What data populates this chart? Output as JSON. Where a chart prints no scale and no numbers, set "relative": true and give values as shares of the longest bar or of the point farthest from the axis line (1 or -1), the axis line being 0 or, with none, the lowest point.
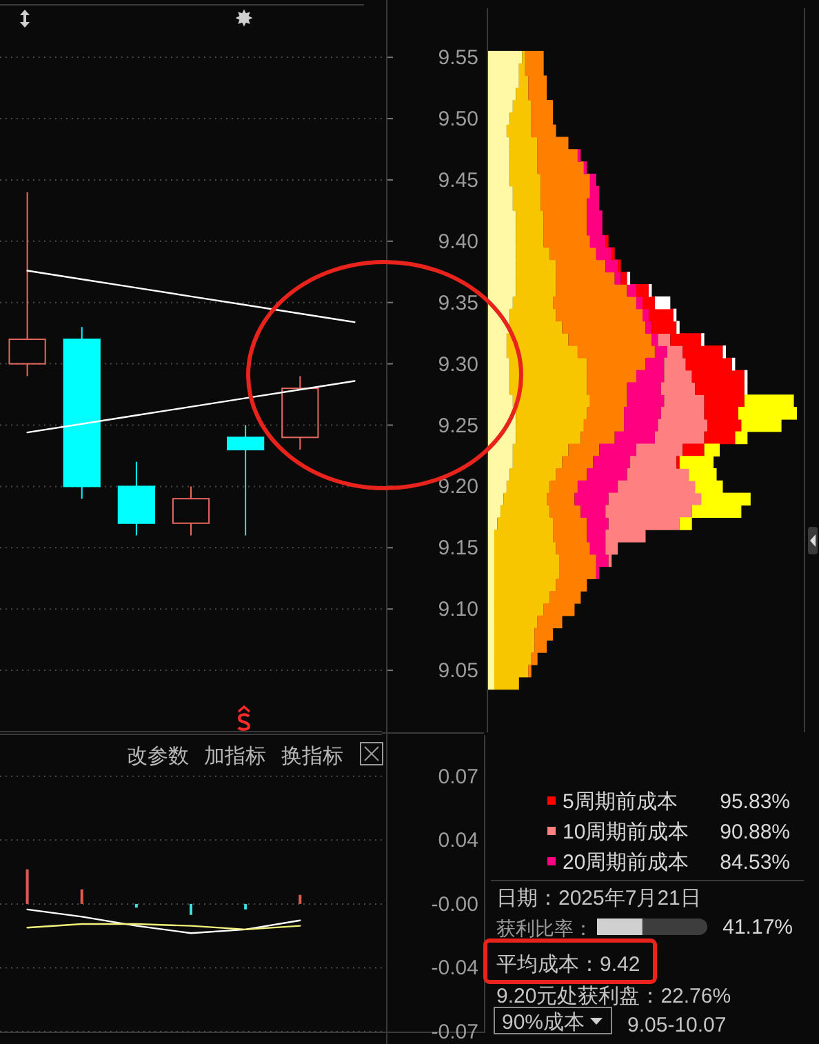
{
  "chart_data": [
    {
      "type": "candlestick",
      "categories": [
        null,
        null,
        null,
        null,
        null,
        null,
        null
      ],
      "ohlc": [
        [
          9.3,
          9.44,
          9.29,
          9.32
        ],
        [
          9.32,
          9.33,
          9.19,
          9.2
        ],
        [
          9.2,
          9.22,
          9.16,
          9.17
        ],
        [
          9.17,
          9.2,
          9.16,
          9.19
        ],
        [
          9.24,
          9.25,
          9.16,
          9.23
        ],
        [
          9.24,
          9.29,
          9.23,
          9.28
        ],
        null
      ],
      "colors": [
        "#e8685f",
        "#00ffff",
        "#00ffff",
        "#e8685f",
        "#00ffff",
        "#e8685f",
        null
      ],
      "series": [
        {
          "type": "line",
          "color": "#ffffff",
          "values": [
            9.376,
            9.369,
            9.362,
            9.355,
            9.348,
            9.341,
            9.334
          ]
        },
        {
          "type": "line",
          "color": "#ffffff",
          "values": [
            9.244,
            9.251,
            9.258,
            9.265,
            9.272,
            9.279,
            9.286
          ]
        }
      ],
      "ylim": [
        9.0,
        9.59
      ],
      "yticks": [
        9.05,
        {
          "value": 9.1,
          "label": "9.10"
        },
        9.15,
        {
          "value": 9.2,
          "label": "9.20"
        },
        9.25,
        {
          "value": 9.3,
          "label": "9.30"
        },
        9.35,
        {
          "value": 9.4,
          "label": "9.40"
        },
        9.45,
        {
          "value": 9.5,
          "label": "9.50"
        },
        9.55
      ],
      "grid": "y",
      "tick_labels": "y"
    },
    {
      "type": "bar",
      "orientation": "horizontal",
      "stacked": true,
      "relative": true,
      "x": [
        9.04,
        9.05,
        9.06,
        9.07,
        9.08,
        9.09,
        9.1,
        9.11,
        9.12,
        9.13,
        9.14,
        9.15,
        9.16,
        9.17,
        9.18,
        9.19,
        9.2,
        9.21,
        9.22,
        9.23,
        9.24,
        9.25,
        9.26,
        9.27,
        9.28,
        9.29,
        9.3,
        9.31,
        9.32,
        9.33,
        9.34,
        9.35,
        9.36,
        9.37,
        9.38,
        9.39,
        9.4,
        9.41,
        9.42,
        9.43,
        9.44,
        9.45,
        9.46,
        9.47,
        9.48,
        9.49,
        9.5,
        9.51,
        9.52,
        9.53,
        9.54,
        9.55
      ],
      "series": [
        {
          "color": "#fff9a6",
          "values": [
            0.02,
            0.02,
            0.02,
            0.02,
            0.02,
            0.02,
            0.02,
            0.02,
            0.02,
            0.02,
            0.02,
            0.02,
            0.02,
            0.03,
            0.04,
            0.05,
            0.06,
            0.07,
            0.08,
            0.08,
            0.09,
            0.09,
            0.09,
            0.08,
            0.07,
            0.07,
            0.07,
            0.06,
            0.06,
            0.07,
            0.07,
            0.08,
            0.09,
            0.09,
            0.09,
            0.09,
            0.09,
            0.09,
            0.09,
            0.08,
            0.08,
            0.07,
            0.07,
            0.07,
            0.07,
            0.06,
            0.07,
            0.08,
            0.09,
            0.1,
            0.1,
            0.11
          ]
        },
        {
          "color": "#f8c600",
          "values": [
            0.08,
            0.11,
            0.12,
            0.13,
            0.13,
            0.14,
            0.16,
            0.18,
            0.2,
            0.21,
            0.21,
            0.2,
            0.19,
            0.18,
            0.16,
            0.14,
            0.14,
            0.15,
            0.16,
            0.18,
            0.21,
            0.22,
            0.23,
            0.25,
            0.25,
            0.25,
            0.25,
            0.23,
            0.2,
            0.17,
            0.15,
            0.13,
            0.13,
            0.13,
            0.13,
            0.11,
            0.09,
            0.09,
            0.09,
            0.09,
            0.09,
            0.1,
            0.09,
            0.09,
            0.09,
            0.08,
            0.07,
            0.06,
            0.04,
            0.03,
            0.02,
            0.01
          ]
        },
        {
          "color": "#ff8000",
          "values": [
            null,
            0.01,
            0.02,
            0.04,
            0.06,
            0.08,
            0.1,
            0.1,
            0.1,
            0.12,
            0.12,
            0.11,
            0.11,
            0.11,
            0.1,
            0.09,
            0.09,
            0.1,
            0.1,
            0.1,
            0.11,
            0.13,
            0.12,
            0.12,
            0.13,
            0.16,
            0.19,
            0.25,
            0.27,
            0.27,
            0.28,
            0.27,
            0.23,
            0.19,
            0.16,
            0.15,
            0.15,
            0.14,
            0.14,
            0.15,
            0.16,
            0.16,
            0.15,
            0.13,
            0.1,
            0.08,
            0.07,
            0.07,
            0.06,
            0.06,
            0.06,
            0.06
          ]
        },
        {
          "name": "20周期前成本",
          "color": "#ff0080",
          "values": [
            null,
            null,
            null,
            null,
            null,
            null,
            null,
            null,
            null,
            0.01,
            0.04,
            0.05,
            0.06,
            0.07,
            0.08,
            0.11,
            0.13,
            0.13,
            0.12,
            0.12,
            0.13,
            0.11,
            0.12,
            0.12,
            0.11,
            0.09,
            0.06,
            0.04,
            0.02,
            0.02,
            0.02,
            0.02,
            0.03,
            0.02,
            0.04,
            0.05,
            0.05,
            0.05,
            0.05,
            0.04,
            0.03,
            0.02,
            0.01,
            0.01,
            null,
            null,
            null,
            null,
            null,
            null,
            null,
            null
          ]
        },
        {
          "name": "10周期前成本",
          "color": "#ff8080",
          "values": [
            null,
            null,
            null,
            null,
            null,
            null,
            null,
            null,
            null,
            null,
            0.01,
            0.04,
            0.13,
            0.23,
            0.28,
            0.3,
            0.25,
            0.2,
            0.15,
            0.15,
            0.16,
            0.16,
            0.14,
            0.13,
            0.11,
            0.09,
            0.07,
            0.05,
            0.04,
            null,
            null,
            null,
            null,
            null,
            null,
            null,
            null,
            null,
            null,
            null,
            null,
            null,
            null,
            null,
            null,
            null,
            null,
            null,
            null,
            null,
            null,
            null
          ]
        },
        {
          "name": "5周期前成本",
          "color": "#ff0000",
          "values": [
            null,
            null,
            null,
            null,
            null,
            null,
            null,
            null,
            null,
            null,
            null,
            null,
            null,
            null,
            null,
            null,
            null,
            null,
            0.01,
            0.07,
            0.1,
            0.11,
            0.11,
            0.13,
            0.16,
            0.17,
            0.15,
            0.13,
            0.1,
            0.08,
            0.08,
            0.04,
            0.04,
            0.02,
            0.01,
            0.01,
            0.01,
            null,
            null,
            null,
            null,
            null,
            null,
            null,
            null,
            null,
            null,
            null,
            null,
            null,
            null,
            null
          ]
        },
        {
          "color": "#ffffff",
          "values": [
            null,
            null,
            null,
            null,
            null,
            null,
            null,
            null,
            null,
            null,
            null,
            null,
            null,
            null,
            null,
            null,
            null,
            null,
            null,
            null,
            null,
            null,
            null,
            null,
            0.01,
            0.01,
            0.01,
            0.01,
            0.01,
            0.01,
            0.01,
            0.05,
            0.01,
            0.01,
            null,
            null,
            null,
            null,
            null,
            null,
            null,
            null,
            null,
            null,
            null,
            null,
            null,
            null,
            null,
            null,
            null,
            null
          ]
        },
        {
          "color": "#ffff00",
          "values": [
            null,
            null,
            null,
            null,
            null,
            null,
            null,
            null,
            null,
            null,
            null,
            null,
            null,
            0.04,
            0.16,
            0.16,
            0.09,
            0.09,
            0.11,
            0.05,
            0.04,
            0.13,
            0.19,
            0.16,
            null,
            null,
            null,
            null,
            null,
            null,
            null,
            null,
            null,
            null,
            null,
            null,
            null,
            null,
            null,
            null,
            null,
            null,
            null,
            null,
            null,
            null,
            null,
            null,
            null,
            null,
            null,
            null
          ]
        }
      ],
      "ylim": [
        9.0,
        9.59
      ],
      "tick_labels": false,
      "legend": "bottom left",
      "annotations": [
        "95.83%",
        "90.88%",
        "84.53%"
      ]
    },
    {
      "type": "bar",
      "categories": [
        null,
        null,
        null,
        null,
        null,
        null,
        null
      ],
      "values": [
        0.019,
        0.008,
        -0.002,
        -0.006,
        -0.003,
        0.005,
        null
      ],
      "colors": [
        "#e05a50",
        "#e05a50",
        "#40e0e0",
        "#40e0e0",
        "#40e0e0",
        "#e05a50",
        null
      ],
      "series": [
        {
          "type": "line",
          "color": "#ffffff",
          "values": [
            -0.003,
            -0.007,
            -0.012,
            -0.016,
            -0.014,
            -0.009,
            null
          ]
        },
        {
          "type": "line",
          "color": "#f2f27a",
          "values": [
            -0.013,
            -0.011,
            -0.011,
            -0.012,
            -0.014,
            -0.012,
            null
          ]
        }
      ],
      "ylim": [
        -0.07,
        0.093
      ],
      "yticks": [
        0.07,
        {
          "value": 0.035,
          "label": "0.04"
        },
        {
          "value": 0,
          "label": "-0.00"
        },
        {
          "value": -0.035,
          "label": "-0.04"
        },
        -0.07
      ],
      "grid": "y",
      "tick_labels": "y",
      "annotations": [
        "改参数",
        "加指标",
        "换指标"
      ]
    },
    {
      "type": "other",
      "annotations": [
        "日期：2025年7月21日",
        "获利比率：",
        "平均成本：9.42",
        "9.20元处获利盘：22.76%",
        "90%成本",
        "9.05-10.07"
      ],
      "values": [
        41.17
      ],
      "value_labels": [
        "41.17%"
      ],
      "color": "#d0d0d0"
    }
  ]
}
